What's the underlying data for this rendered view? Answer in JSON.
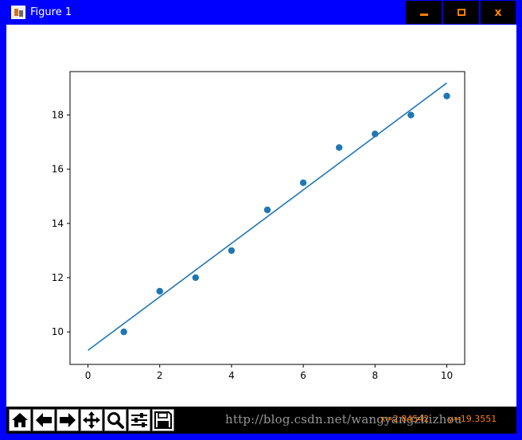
{
  "window": {
    "title": "Figure 1",
    "controls": {
      "minimize": "minimize",
      "maximize": "maximize",
      "close": "x"
    }
  },
  "toolbar": {
    "tools": [
      {
        "name": "home-icon",
        "label": "Home"
      },
      {
        "name": "back-icon",
        "label": "Back"
      },
      {
        "name": "forward-icon",
        "label": "Forward"
      },
      {
        "name": "pan-icon",
        "label": "Pan"
      },
      {
        "name": "zoom-icon",
        "label": "Zoom"
      },
      {
        "name": "configure-subplots-icon",
        "label": "Configure subplots"
      },
      {
        "name": "save-icon",
        "label": "Save"
      }
    ],
    "coords_x": "x=2.84542",
    "coords_y": "y=19.3551",
    "watermark": "http://blog.csdn.net/wangyangzhizhou"
  },
  "colors": {
    "window_frame": "#0000ff",
    "series": "#1f77b4",
    "accent": "#ff8000"
  },
  "chart_data": {
    "type": "scatter",
    "title": "",
    "xlabel": "",
    "ylabel": "",
    "xlim": [
      -0.5,
      10.5
    ],
    "ylim": [
      8.8,
      19.6
    ],
    "xticks": [
      0,
      2,
      4,
      6,
      8,
      10
    ],
    "yticks": [
      10,
      12,
      14,
      16,
      18
    ],
    "grid": false,
    "series": [
      {
        "type": "scatter",
        "x": [
          1,
          2,
          3,
          4,
          5,
          6,
          7,
          8,
          9,
          10
        ],
        "y": [
          10.0,
          11.5,
          12.0,
          13.0,
          14.5,
          15.5,
          16.8,
          17.3,
          18.0,
          18.7
        ]
      },
      {
        "type": "line",
        "x": [
          0,
          10
        ],
        "y": [
          9.32,
          19.18
        ]
      }
    ]
  }
}
